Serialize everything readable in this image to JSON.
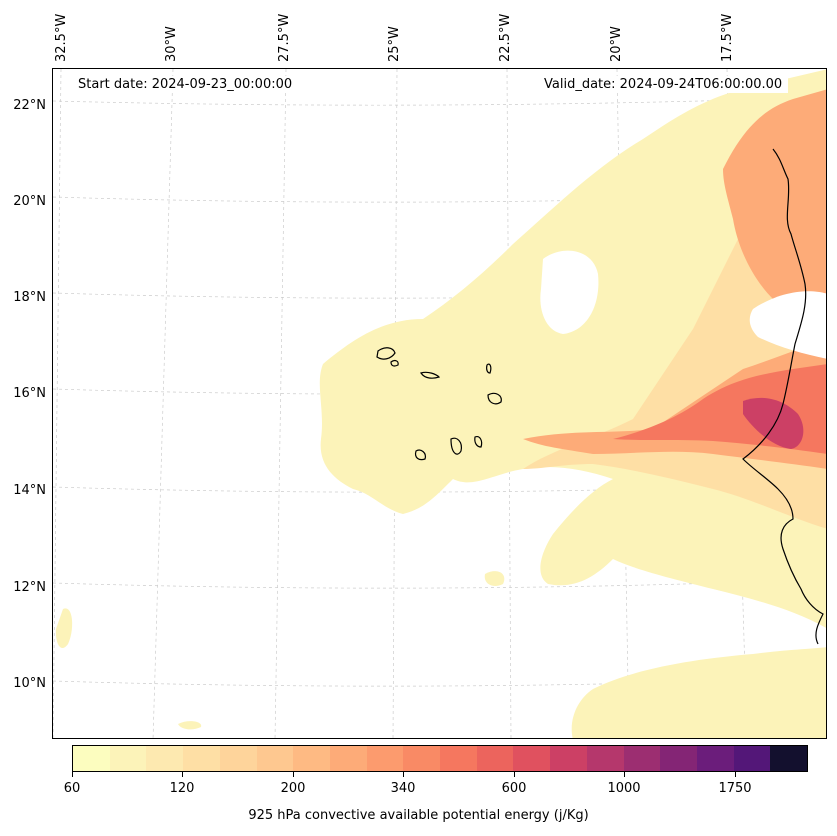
{
  "map": {
    "start_date": "Start date: 2024-09-23_00:00:00",
    "valid_date": "Valid_date: 2024-09-24T06:00:00.00",
    "longitude_labels": [
      "32.5°W",
      "30°W",
      "27.5°W",
      "25°W",
      "22.5°W",
      "20°W",
      "17.5°W"
    ],
    "latitude_labels": [
      "22°N",
      "20°N",
      "18°N",
      "16°N",
      "14°N",
      "12°N",
      "10°N"
    ]
  },
  "colorbar": {
    "title": "925 hPa convective available potential energy (j/Kg)",
    "tick_labels": [
      "60",
      "120",
      "200",
      "340",
      "600",
      "1000",
      "1750"
    ],
    "colors": [
      "#fcfdbf",
      "#fcf3b9",
      "#fde9b0",
      "#fedfa5",
      "#fed49b",
      "#fec890",
      "#feba83",
      "#fdab78",
      "#fc9b6e",
      "#f98a65",
      "#f5775f",
      "#ec645d",
      "#e0515f",
      "#cc4065",
      "#b5376c",
      "#9c2e71",
      "#842575",
      "#6b1d7b",
      "#531778",
      "#13102e"
    ]
  }
}
